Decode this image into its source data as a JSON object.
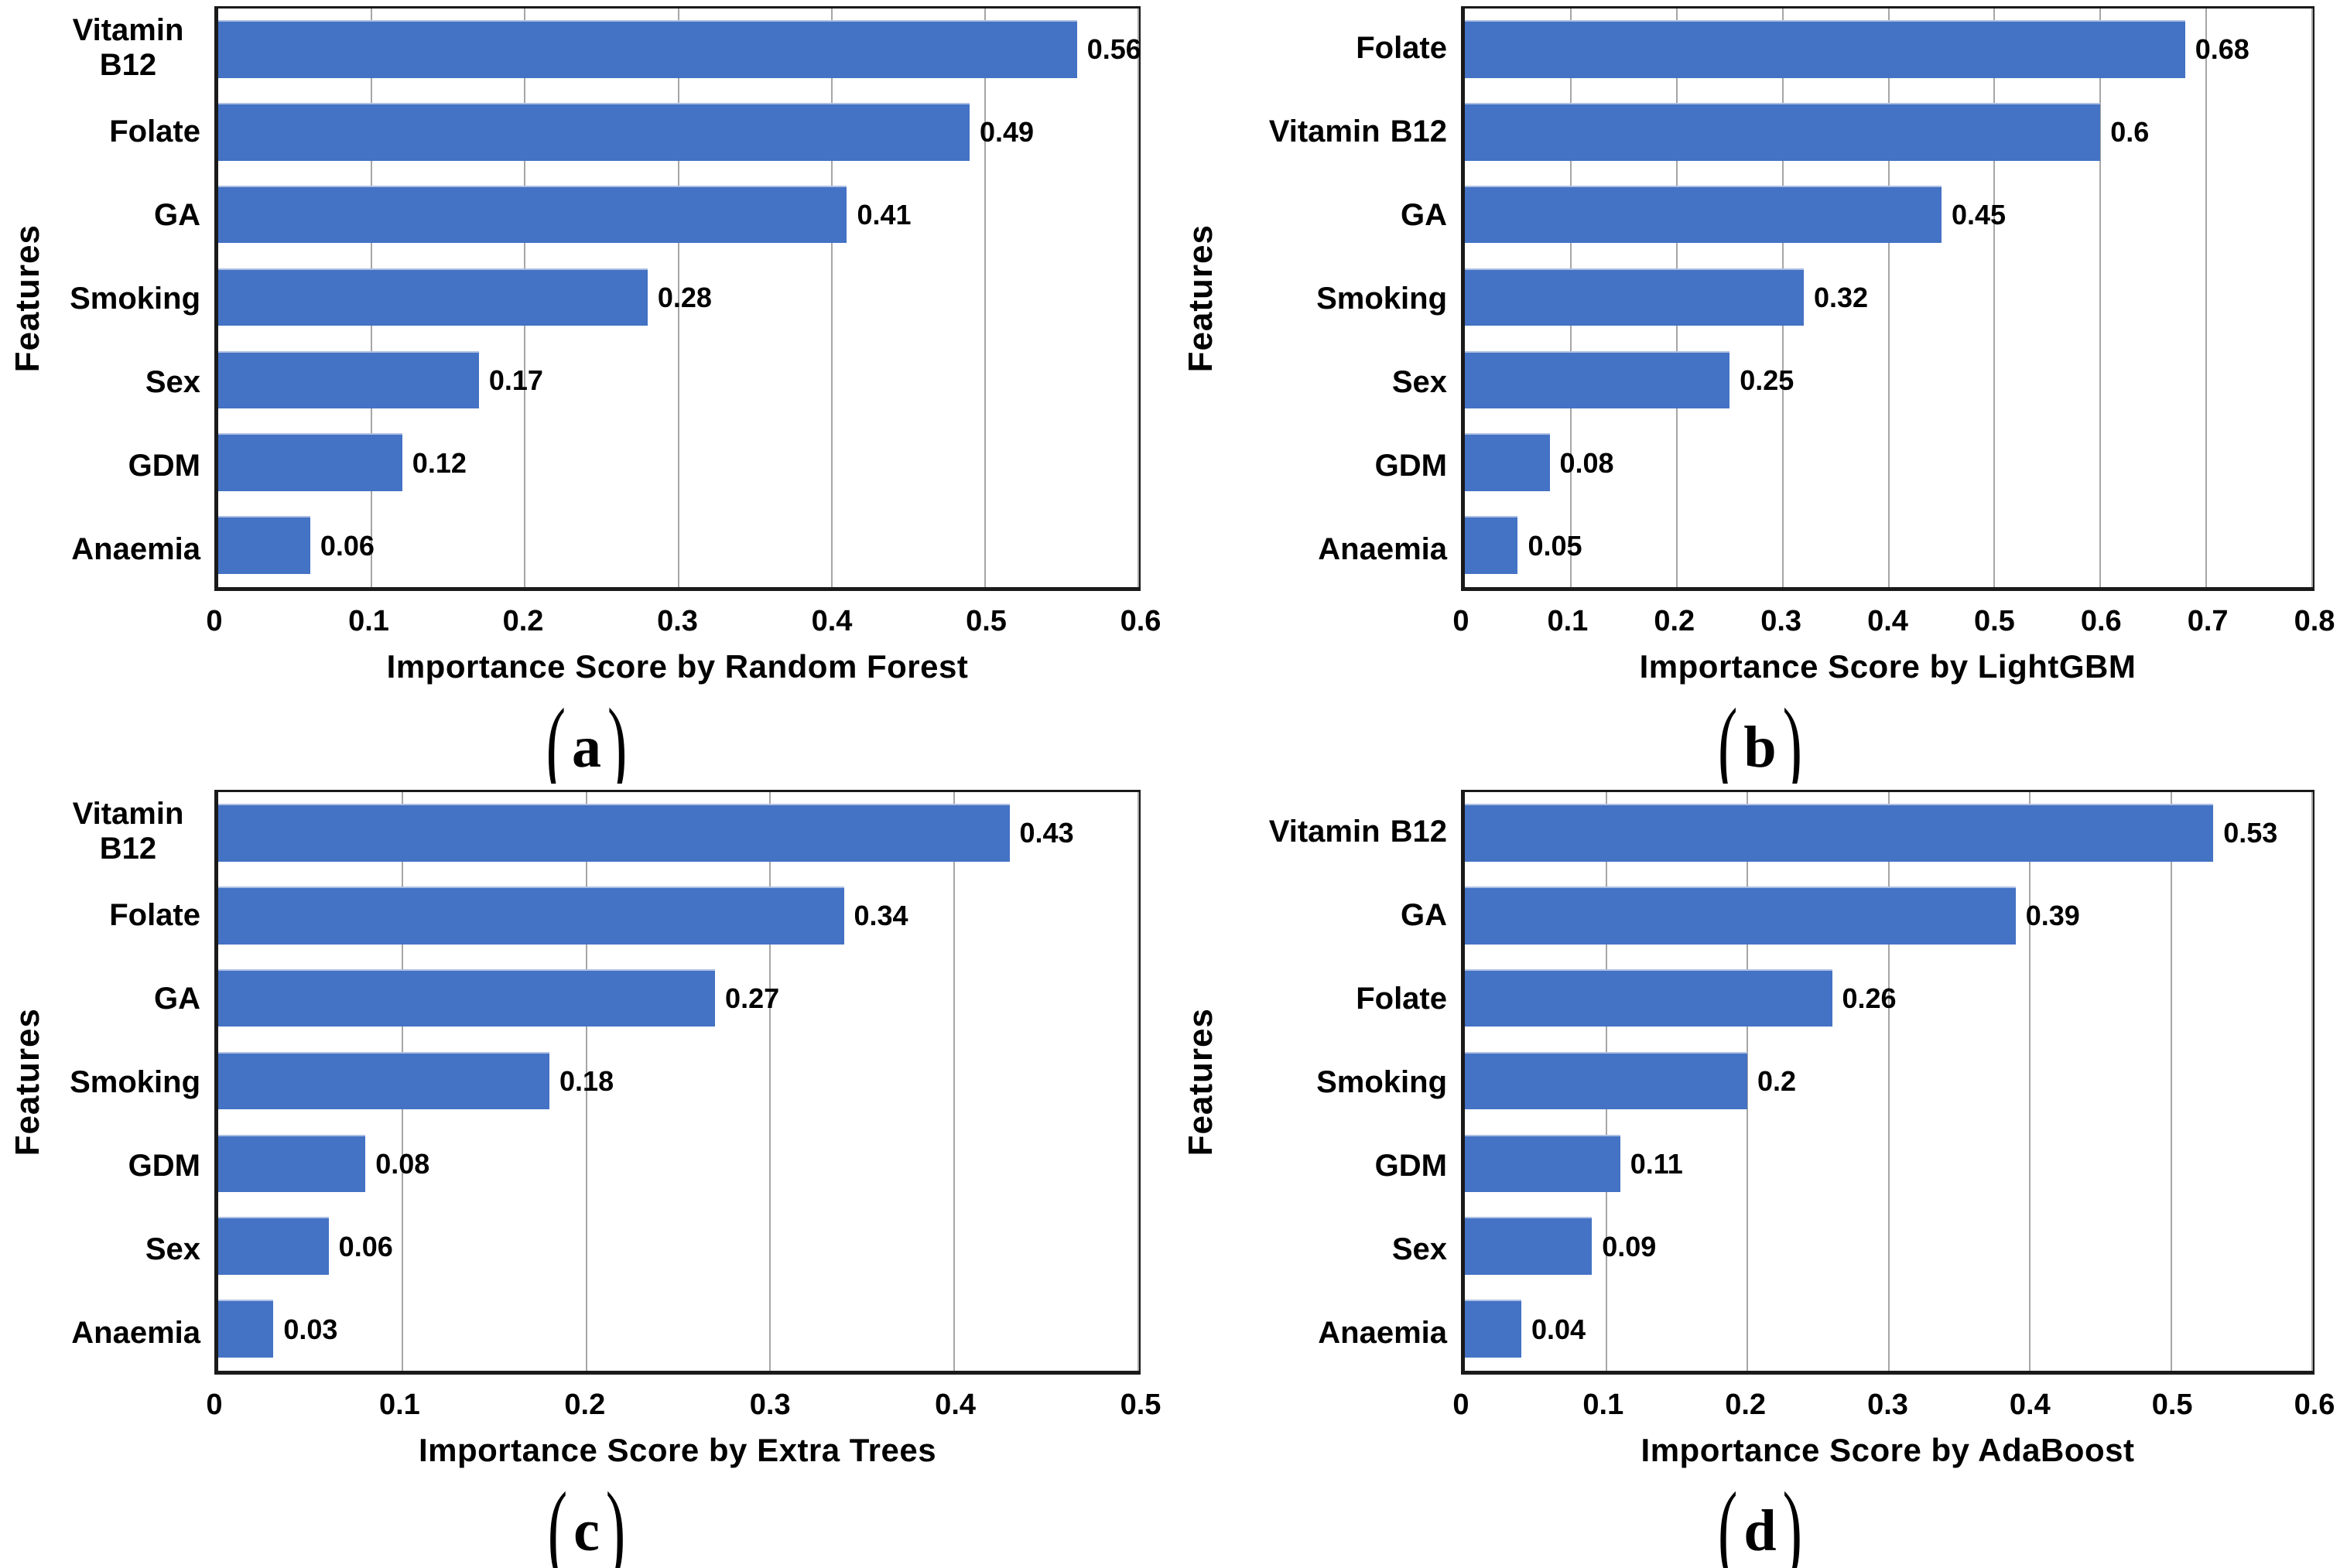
{
  "figure": {
    "background": "#ffffff",
    "bar_color": "#4472C4",
    "grid_color": "#a6a6a6",
    "axis_color": "#1a1a1a",
    "text_color": "#000000",
    "ylabel": "Features"
  },
  "chart_data": [
    {
      "type": "bar",
      "orientation": "horizontal",
      "caption": "(a)",
      "xlabel": "Importance Score by Random Forest",
      "ylabel": "Features",
      "grid": "vertical gridlines on",
      "legend": "none",
      "categories": [
        "Vitamin B12",
        "Folate",
        "GA",
        "Smoking",
        "Sex",
        "GDM",
        "Anaemia"
      ],
      "values": [
        0.56,
        0.49,
        0.41,
        0.28,
        0.17,
        0.12,
        0.06
      ],
      "value_labels": [
        "0.56",
        "0.49",
        "0.41",
        "0.28",
        "0.17",
        "0.12",
        "0.06"
      ],
      "xlim": [
        0,
        0.6
      ],
      "xticks": [
        0,
        0.1,
        0.2,
        0.3,
        0.4,
        0.5,
        0.6
      ],
      "xtick_labels": [
        "0",
        "0.1",
        "0.2",
        "0.3",
        "0.4",
        "0.5",
        "0.6"
      ]
    },
    {
      "type": "bar",
      "orientation": "horizontal",
      "caption": "(b)",
      "xlabel": "Importance Score by LightGBM",
      "ylabel": "Features",
      "grid": "vertical gridlines on",
      "legend": "none",
      "categories": [
        "Folate",
        "Vitamin B12",
        "GA",
        "Smoking",
        "Sex",
        "GDM",
        "Anaemia"
      ],
      "values": [
        0.68,
        0.6,
        0.45,
        0.32,
        0.25,
        0.08,
        0.05
      ],
      "value_labels": [
        "0.68",
        "0.6",
        "0.45",
        "0.32",
        "0.25",
        "0.08",
        "0.05"
      ],
      "xlim": [
        0,
        0.8
      ],
      "xticks": [
        0,
        0.1,
        0.2,
        0.3,
        0.4,
        0.5,
        0.6,
        0.7,
        0.8
      ],
      "xtick_labels": [
        "0",
        "0.1",
        "0.2",
        "0.3",
        "0.4",
        "0.5",
        "0.6",
        "0.7",
        "0.8"
      ]
    },
    {
      "type": "bar",
      "orientation": "horizontal",
      "caption": "(c)",
      "xlabel": "Importance Score by Extra Trees",
      "ylabel": "Features",
      "grid": "vertical gridlines on",
      "legend": "none",
      "categories": [
        "Vitamin B12",
        "Folate",
        "GA",
        "Smoking",
        "GDM",
        "Sex",
        "Anaemia"
      ],
      "values": [
        0.43,
        0.34,
        0.27,
        0.18,
        0.08,
        0.06,
        0.03
      ],
      "value_labels": [
        "0.43",
        "0.34",
        "0.27",
        "0.18",
        "0.08",
        "0.06",
        "0.03"
      ],
      "xlim": [
        0,
        0.5
      ],
      "xticks": [
        0,
        0.1,
        0.2,
        0.3,
        0.4,
        0.5
      ],
      "xtick_labels": [
        "0",
        "0.1",
        "0.2",
        "0.3",
        "0.4",
        "0.5"
      ]
    },
    {
      "type": "bar",
      "orientation": "horizontal",
      "caption": "(d)",
      "xlabel": "Importance Score by AdaBoost",
      "ylabel": "Features",
      "grid": "vertical gridlines on",
      "legend": "none",
      "categories": [
        "Vitamin B12",
        "GA",
        "Folate",
        "Smoking",
        "GDM",
        "Sex",
        "Anaemia"
      ],
      "values": [
        0.53,
        0.39,
        0.26,
        0.2,
        0.11,
        0.09,
        0.04
      ],
      "value_labels": [
        "0.53",
        "0.39",
        "0.26",
        "0.2",
        "0.11",
        "0.09",
        "0.04"
      ],
      "xlim": [
        0,
        0.6
      ],
      "xticks": [
        0,
        0.1,
        0.2,
        0.3,
        0.4,
        0.5,
        0.6
      ],
      "xtick_labels": [
        "0",
        "0.1",
        "0.2",
        "0.3",
        "0.4",
        "0.5",
        "0.6"
      ]
    }
  ]
}
